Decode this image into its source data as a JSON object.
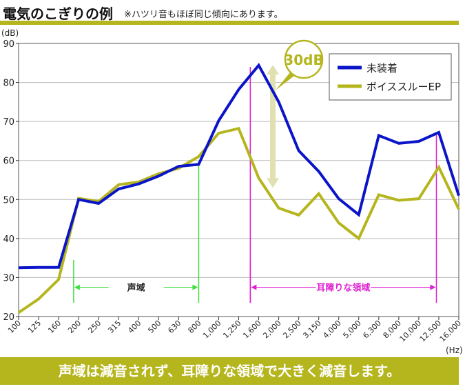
{
  "header": {
    "title": "電気のこぎりの例",
    "note": "※ハツリ音もほぼ同じ傾向にあります。"
  },
  "banner": {
    "text": "声域は減音されず、耳障りな領域で大きく減音します。"
  },
  "colors": {
    "accent": "#b5b51e",
    "blue": "#0a14c8",
    "yellow": "#b5b51e",
    "green": "#3fe03f",
    "magenta": "#e020d0",
    "arrow": "#e0e0b0",
    "grid": "#bbbbbb"
  },
  "chart_data": {
    "type": "line",
    "ylabel": "(dB)",
    "xlabel": "(Hz)",
    "ylim": [
      20,
      90
    ],
    "yticks": [
      20,
      30,
      40,
      50,
      60,
      70,
      80,
      90
    ],
    "grid": true,
    "legend": "top-right",
    "categories": [
      "100",
      "125",
      "160",
      "200",
      "250",
      "315",
      "400",
      "500",
      "630",
      "800",
      "1,000",
      "1,250",
      "1,600",
      "2,000",
      "2,500",
      "3,150",
      "4,000",
      "5,000",
      "6,300",
      "8,000",
      "10,000",
      "12,500",
      "16,000"
    ],
    "series": [
      {
        "name": "未装着",
        "color": "#0a14c8",
        "values": [
          32.5,
          32.6,
          32.6,
          50,
          49,
          52.7,
          54,
          56,
          58.5,
          59,
          70.2,
          78.2,
          84.4,
          75,
          62.5,
          57.2,
          50.2,
          46.1,
          66.4,
          64.4,
          64.9,
          67.2,
          51
        ]
      },
      {
        "name": "ボイススルーEP",
        "color": "#b5b51e",
        "values": [
          21,
          24.5,
          29.5,
          50.3,
          49.5,
          53.8,
          54.5,
          56.6,
          58,
          61,
          67,
          68.2,
          55.5,
          47.8,
          46,
          51.5,
          44,
          40,
          51.2,
          49.8,
          50.2,
          58.3,
          47.5
        ]
      }
    ],
    "annotations": {
      "voice_range": "声域",
      "harsh_range": "耳障りな領域",
      "difference": "30dB"
    }
  }
}
